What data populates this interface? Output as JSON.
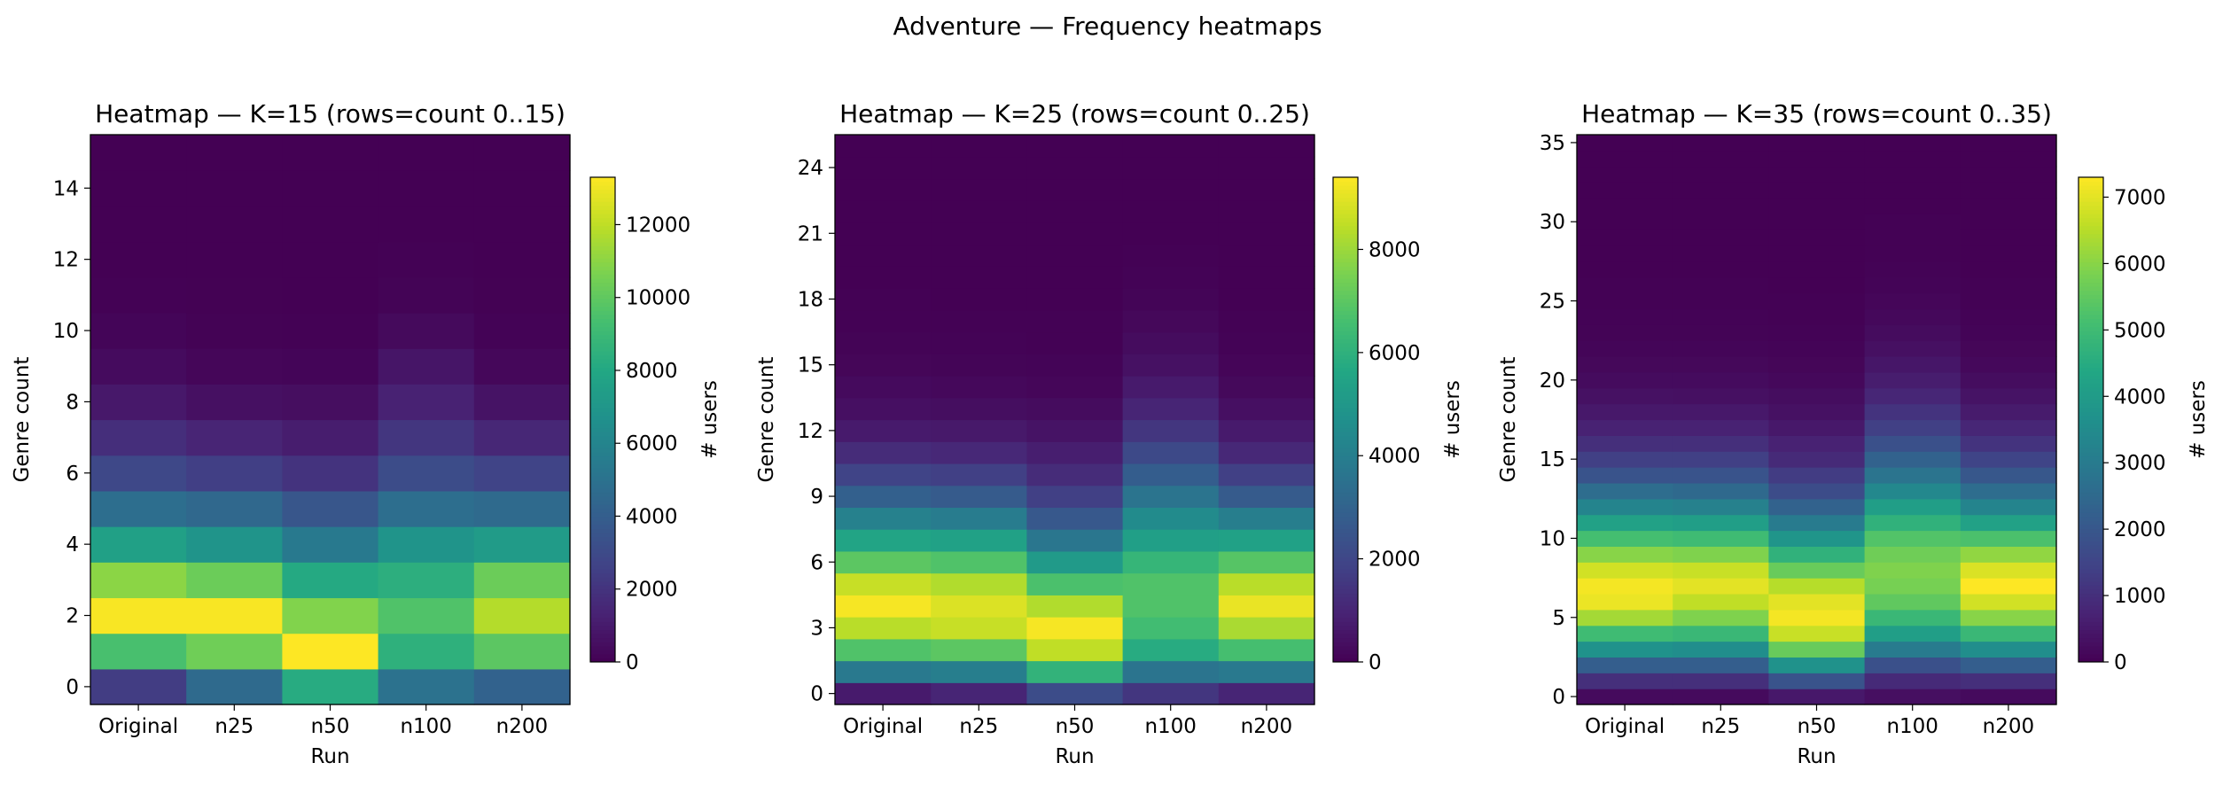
{
  "suptitle": "Adventure — Frequency heatmaps",
  "colormap": "viridis",
  "chart_data": [
    {
      "type": "heatmap",
      "title": "Heatmap — K=15 (rows=count 0..15)",
      "xlabel": "Run",
      "ylabel": "Genre count",
      "colorbar_label": "# users",
      "categories": [
        "Original",
        "n25",
        "n50",
        "n100",
        "n200"
      ],
      "row_counts": [
        0,
        1,
        2,
        3,
        4,
        5,
        6,
        7,
        8,
        9,
        10,
        11,
        12,
        13,
        14,
        15
      ],
      "yticks": [
        0,
        2,
        4,
        6,
        8,
        10,
        12,
        14
      ],
      "vmax": 13300,
      "cbar_ticks": [
        0,
        2000,
        4000,
        6000,
        8000,
        10000,
        12000
      ],
      "values": [
        [
          2400,
          4600,
          8200,
          5000,
          4200
        ],
        [
          9400,
          10400,
          13300,
          8500,
          9900
        ],
        [
          13200,
          13200,
          10800,
          9600,
          11800
        ],
        [
          11000,
          10300,
          8100,
          8400,
          10300
        ],
        [
          7600,
          6900,
          5400,
          6900,
          7300
        ],
        [
          4800,
          4500,
          3600,
          4800,
          4600
        ],
        [
          2900,
          2500,
          2000,
          3100,
          2700
        ],
        [
          1800,
          1400,
          1100,
          2100,
          1500
        ],
        [
          900,
          600,
          500,
          1300,
          700
        ],
        [
          400,
          200,
          150,
          800,
          250
        ],
        [
          150,
          60,
          50,
          350,
          80
        ],
        [
          40,
          20,
          10,
          100,
          20
        ],
        [
          10,
          5,
          5,
          30,
          5
        ],
        [
          2,
          1,
          1,
          8,
          1
        ],
        [
          0,
          0,
          0,
          2,
          0
        ],
        [
          0,
          0,
          0,
          0,
          0
        ]
      ]
    },
    {
      "type": "heatmap",
      "title": "Heatmap — K=25 (rows=count 0..25)",
      "xlabel": "Run",
      "ylabel": "Genre count",
      "colorbar_label": "# users",
      "categories": [
        "Original",
        "n25",
        "n50",
        "n100",
        "n200"
      ],
      "row_counts": [
        0,
        1,
        2,
        3,
        4,
        5,
        6,
        7,
        8,
        9,
        10,
        11,
        12,
        13,
        14,
        15,
        16,
        17,
        18,
        19,
        20,
        21,
        22,
        23,
        24,
        25
      ],
      "yticks": [
        0,
        3,
        6,
        9,
        12,
        15,
        18,
        21,
        24
      ],
      "vmax": 9400,
      "cbar_ticks": [
        0,
        2000,
        4000,
        6000,
        8000
      ],
      "values": [
        [
          700,
          1000,
          2200,
          1500,
          1000
        ],
        [
          3800,
          4000,
          6100,
          3600,
          3800
        ],
        [
          6800,
          7000,
          8500,
          5800,
          6600
        ],
        [
          8400,
          8600,
          9300,
          6500,
          8200
        ],
        [
          9300,
          8900,
          8300,
          6800,
          9100
        ],
        [
          8600,
          8300,
          6700,
          6800,
          8400
        ],
        [
          7000,
          6800,
          5100,
          6200,
          6900
        ],
        [
          5500,
          5400,
          3700,
          5300,
          5400
        ],
        [
          4100,
          3900,
          2600,
          4500,
          4000
        ],
        [
          2900,
          2700,
          1800,
          3600,
          2700
        ],
        [
          1900,
          1800,
          1200,
          2800,
          1800
        ],
        [
          1200,
          1100,
          800,
          2100,
          1100
        ],
        [
          700,
          650,
          500,
          1500,
          700
        ],
        [
          400,
          350,
          300,
          1000,
          400
        ],
        [
          250,
          200,
          150,
          700,
          220
        ],
        [
          130,
          100,
          80,
          450,
          120
        ],
        [
          70,
          50,
          40,
          300,
          60
        ],
        [
          35,
          25,
          20,
          180,
          30
        ],
        [
          15,
          10,
          10,
          100,
          12
        ],
        [
          6,
          4,
          4,
          50,
          5
        ],
        [
          2,
          2,
          1,
          25,
          2
        ],
        [
          1,
          1,
          0,
          10,
          1
        ],
        [
          0,
          0,
          0,
          4,
          0
        ],
        [
          0,
          0,
          0,
          1,
          0
        ],
        [
          0,
          0,
          0,
          0,
          0
        ],
        [
          0,
          0,
          0,
          0,
          0
        ]
      ]
    },
    {
      "type": "heatmap",
      "title": "Heatmap — K=35 (rows=count 0..35)",
      "xlabel": "Run",
      "ylabel": "Genre count",
      "colorbar_label": "# users",
      "categories": [
        "Original",
        "n25",
        "n50",
        "n100",
        "n200"
      ],
      "row_counts": [
        0,
        1,
        2,
        3,
        4,
        5,
        6,
        7,
        8,
        9,
        10,
        11,
        12,
        13,
        14,
        15,
        16,
        17,
        18,
        19,
        20,
        21,
        22,
        23,
        24,
        25,
        26,
        27,
        28,
        29,
        30,
        31,
        32,
        33,
        34,
        35
      ],
      "yticks": [
        0,
        5,
        10,
        15,
        20,
        25,
        30,
        35
      ],
      "vmax": 7300,
      "cbar_ticks": [
        0,
        1000,
        2000,
        3000,
        4000,
        5000,
        6000,
        7000
      ],
      "values": [
        [
          200,
          200,
          500,
          300,
          200
        ],
        [
          1000,
          1000,
          1900,
          900,
          1000
        ],
        [
          2200,
          2200,
          3700,
          1800,
          2200
        ],
        [
          3700,
          3600,
          5600,
          3000,
          3600
        ],
        [
          5000,
          4900,
          6700,
          4100,
          4900
        ],
        [
          6300,
          5900,
          7200,
          4900,
          6000
        ],
        [
          7100,
          6600,
          7000,
          5500,
          6800
        ],
        [
          7200,
          7000,
          6500,
          5800,
          7300
        ],
        [
          6800,
          6700,
          5600,
          5900,
          6900
        ],
        [
          6000,
          5900,
          4700,
          5700,
          6100
        ],
        [
          5100,
          5000,
          3800,
          5300,
          5200
        ],
        [
          4200,
          4100,
          3000,
          4700,
          4200
        ],
        [
          3300,
          3200,
          2300,
          4100,
          3300
        ],
        [
          2600,
          2500,
          1700,
          3400,
          2600
        ],
        [
          1900,
          1900,
          1300,
          2800,
          2000
        ],
        [
          1400,
          1400,
          900,
          2300,
          1500
        ],
        [
          1000,
          1000,
          700,
          1800,
          1100
        ],
        [
          700,
          700,
          500,
          1400,
          800
        ],
        [
          500,
          500,
          350,
          1100,
          550
        ],
        [
          350,
          330,
          250,
          800,
          380
        ],
        [
          220,
          220,
          160,
          600,
          250
        ],
        [
          140,
          140,
          100,
          450,
          160
        ],
        [
          90,
          90,
          60,
          320,
          100
        ],
        [
          55,
          55,
          40,
          230,
          65
        ],
        [
          35,
          35,
          25,
          160,
          40
        ],
        [
          20,
          20,
          15,
          110,
          25
        ],
        [
          12,
          12,
          8,
          75,
          15
        ],
        [
          7,
          7,
          5,
          50,
          8
        ],
        [
          4,
          4,
          3,
          32,
          5
        ],
        [
          2,
          2,
          1,
          20,
          3
        ],
        [
          1,
          1,
          1,
          12,
          1
        ],
        [
          0,
          0,
          0,
          7,
          1
        ],
        [
          0,
          0,
          0,
          4,
          0
        ],
        [
          0,
          0,
          0,
          2,
          0
        ],
        [
          0,
          0,
          0,
          1,
          0
        ],
        [
          0,
          0,
          0,
          0,
          0
        ]
      ]
    }
  ]
}
